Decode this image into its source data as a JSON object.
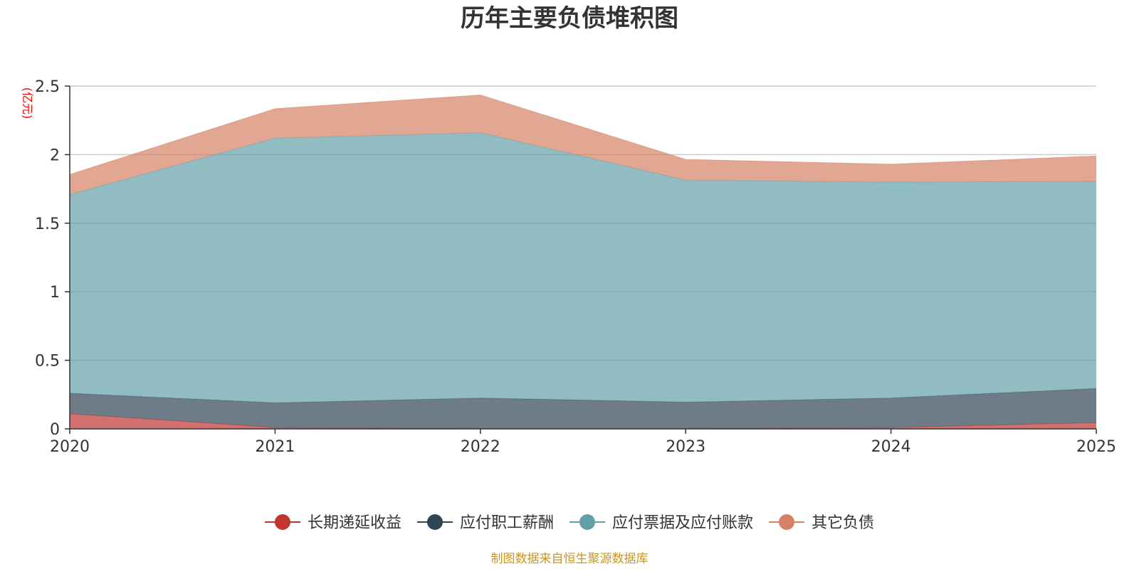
{
  "chart_data": {
    "type": "area",
    "stacked": true,
    "title": "历年主要负债堆积图",
    "unit_label": "(亿元)",
    "x": [
      "2020",
      "2021",
      "2022",
      "2023",
      "2024",
      "2025"
    ],
    "y_ticks": [
      "0",
      "0.5",
      "1",
      "1.5",
      "2",
      "2.5"
    ],
    "ylim": [
      0,
      2.5
    ],
    "grid": true,
    "legend_position": "bottom",
    "series": [
      {
        "name": "长期递延收益",
        "color": "#c23531",
        "values": [
          0.11,
          0.01,
          0.0,
          0.0,
          0.01,
          0.045
        ]
      },
      {
        "name": "应付职工薪酬",
        "color": "#2f4554",
        "values": [
          0.15,
          0.18,
          0.225,
          0.195,
          0.215,
          0.25
        ]
      },
      {
        "name": "应付票据及应付账款",
        "color": "#61a0a8",
        "values": [
          1.45,
          1.93,
          1.935,
          1.62,
          1.575,
          1.51
        ]
      },
      {
        "name": "其它负债",
        "color": "#d48265",
        "values": [
          0.145,
          0.215,
          0.275,
          0.15,
          0.13,
          0.185
        ]
      }
    ],
    "source": "制图数据来自恒生聚源数据库"
  }
}
